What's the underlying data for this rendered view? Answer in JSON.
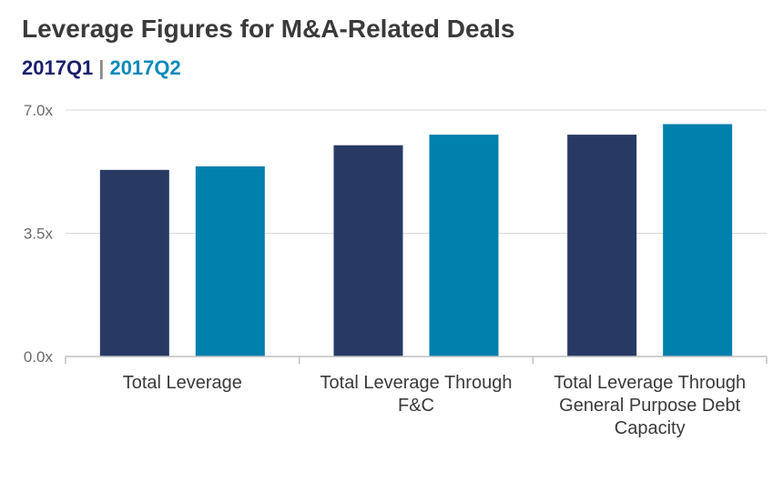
{
  "header": {
    "title": "Leverage Figures for M&A-Related Deals",
    "legend_separator": "|"
  },
  "colors": {
    "series_1": "#283a64",
    "series_2": "#0080ac",
    "legend_1": "#1a1f6b",
    "legend_2": "#0a8ab8",
    "grid": "#d9d9d9",
    "axis": "#bfbfbf"
  },
  "chart_data": {
    "type": "bar",
    "title": "Leverage Figures for M&A-Related Deals",
    "categories": [
      "Total Leverage",
      "Total Leverage Through F&C",
      "Total Leverage Through General Purpose Debt Capacity"
    ],
    "category_label_lines": [
      [
        "Total Leverage"
      ],
      [
        "Total Leverage Through",
        "F&C"
      ],
      [
        "Total Leverage Through",
        "General Purpose Debt",
        "Capacity"
      ]
    ],
    "series": [
      {
        "name": "2017Q1",
        "values": [
          5.3,
          6.0,
          6.3
        ]
      },
      {
        "name": "2017Q2",
        "values": [
          5.4,
          6.3,
          6.6
        ]
      }
    ],
    "yticks": [
      {
        "value": 0.0,
        "label": "0.0x"
      },
      {
        "value": 3.5,
        "label": "3.5x"
      },
      {
        "value": 7.0,
        "label": "7.0x"
      }
    ],
    "ylim": [
      0,
      7.0
    ],
    "xlabel": "",
    "ylabel": "",
    "grid": true,
    "legend_position": "below-title"
  }
}
